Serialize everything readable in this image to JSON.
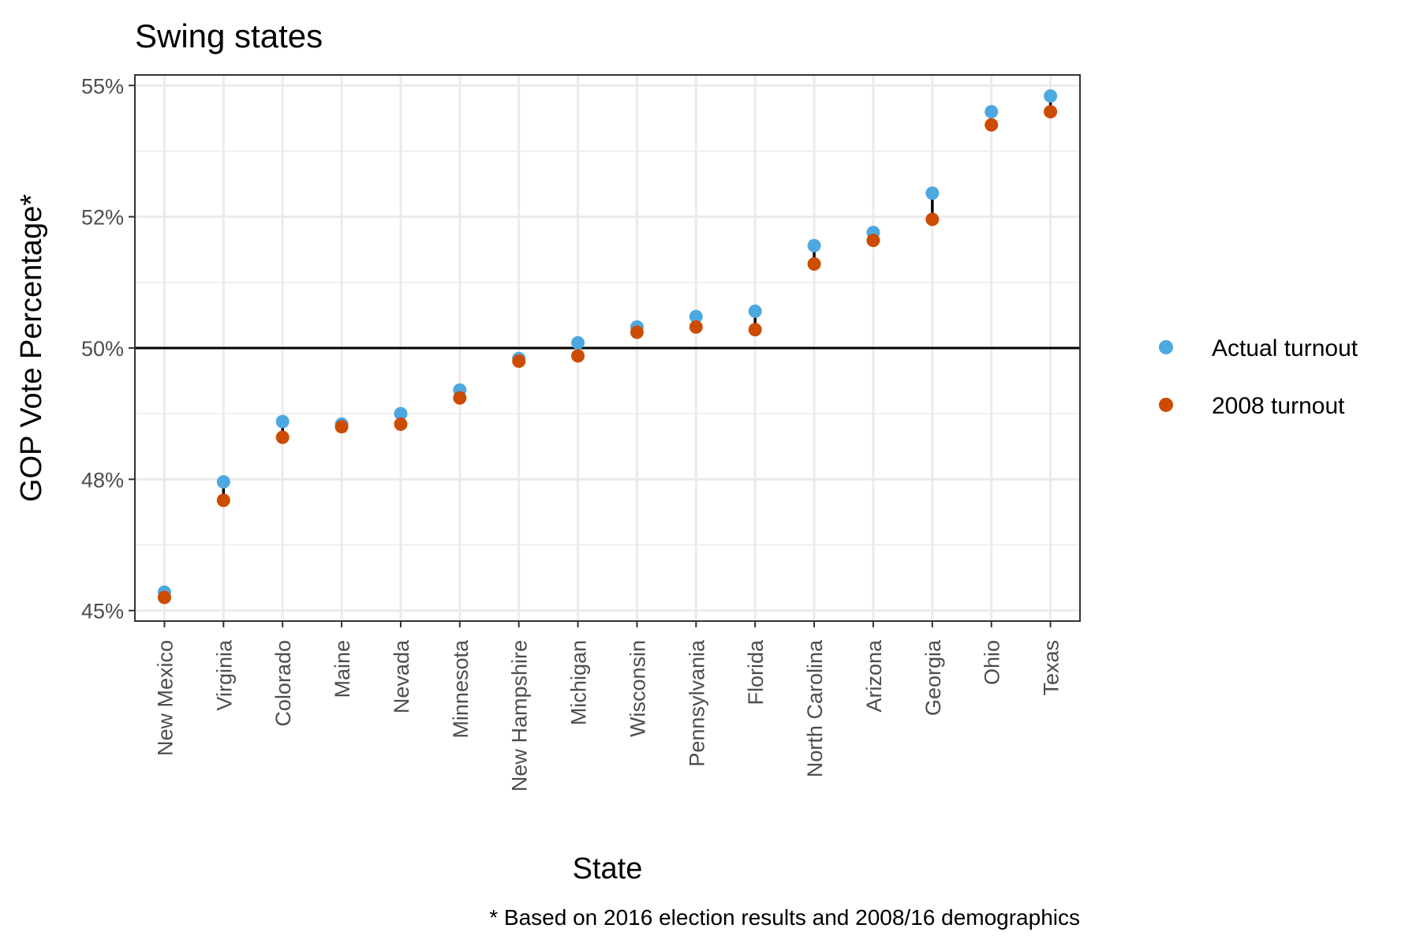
{
  "chart_data": {
    "type": "scatter",
    "title": "Swing states",
    "xlabel": "State",
    "ylabel": "GOP Vote Percentage*",
    "caption": "* Based on 2016 election results and 2008/16 demographics",
    "categories": [
      "New Mexico",
      "Virginia",
      "Colorado",
      "Maine",
      "Nevada",
      "Minnesota",
      "New Hampshire",
      "Michigan",
      "Wisconsin",
      "Pennsylvania",
      "Florida",
      "North Carolina",
      "Arizona",
      "Georgia",
      "Ohio",
      "Texas"
    ],
    "ylim": [
      44.8,
      55.2
    ],
    "yticks": [
      45,
      47.5,
      50,
      52.5,
      55
    ],
    "ytick_labels": [
      "45%",
      "48%",
      "50%",
      "52%",
      "55%"
    ],
    "reference_line": 50,
    "grid": true,
    "legend_position": "right",
    "series": [
      {
        "name": "Actual turnout",
        "color": "#4ea8e0",
        "values": [
          45.35,
          47.45,
          48.6,
          48.55,
          48.75,
          49.2,
          49.8,
          50.1,
          50.4,
          50.6,
          50.7,
          51.95,
          52.2,
          52.95,
          54.5,
          54.8
        ]
      },
      {
        "name": "2008 turnout",
        "color": "#cc4c02",
        "values": [
          45.25,
          47.1,
          48.3,
          48.5,
          48.55,
          49.05,
          49.75,
          49.85,
          50.3,
          50.4,
          50.35,
          51.6,
          52.05,
          52.45,
          54.25,
          54.5
        ]
      }
    ],
    "colors": {
      "connector": "#000000",
      "grid": "#ebebeb",
      "panel_border": "#333333",
      "reference_line": "#000000"
    }
  }
}
